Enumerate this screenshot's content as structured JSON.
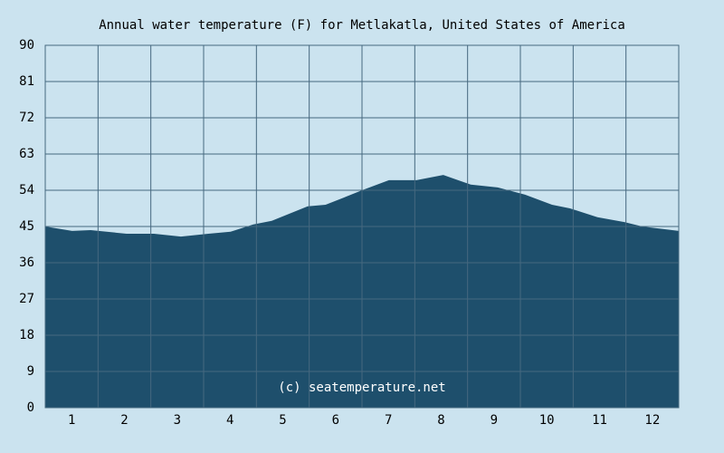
{
  "chart_data": {
    "type": "area",
    "title": "Annual water temperature (F) for Metlakatla, United States of America",
    "annotation": "(c) seatemperature.net",
    "x": [
      0.5,
      1.01,
      1.36,
      2.04,
      2.56,
      3.07,
      3.59,
      4.01,
      4.44,
      4.79,
      5.13,
      5.47,
      5.81,
      6.16,
      6.5,
      7.01,
      7.53,
      8.04,
      8.56,
      9.07,
      9.59,
      10.1,
      10.44,
      10.96,
      11.47,
      11.81,
      12.5
    ],
    "values": [
      45,
      43.9,
      44.1,
      43.2,
      43.2,
      42.5,
      43.2,
      43.7,
      45.5,
      46.4,
      48.2,
      50,
      50.4,
      52.2,
      54,
      56.5,
      56.5,
      57.8,
      55.4,
      54.7,
      52.9,
      50.4,
      49.5,
      47.3,
      46.1,
      45,
      43.9
    ],
    "color": "#1e4f6c",
    "xlim": [
      0.5,
      12.5
    ],
    "xticks": [
      1,
      2,
      3,
      4,
      5,
      6,
      7,
      8,
      9,
      10,
      11,
      12
    ],
    "ylim": [
      0,
      90
    ],
    "yticks": [
      0,
      9,
      18,
      27,
      36,
      45,
      54,
      63,
      72,
      81,
      90
    ],
    "grid": true
  }
}
